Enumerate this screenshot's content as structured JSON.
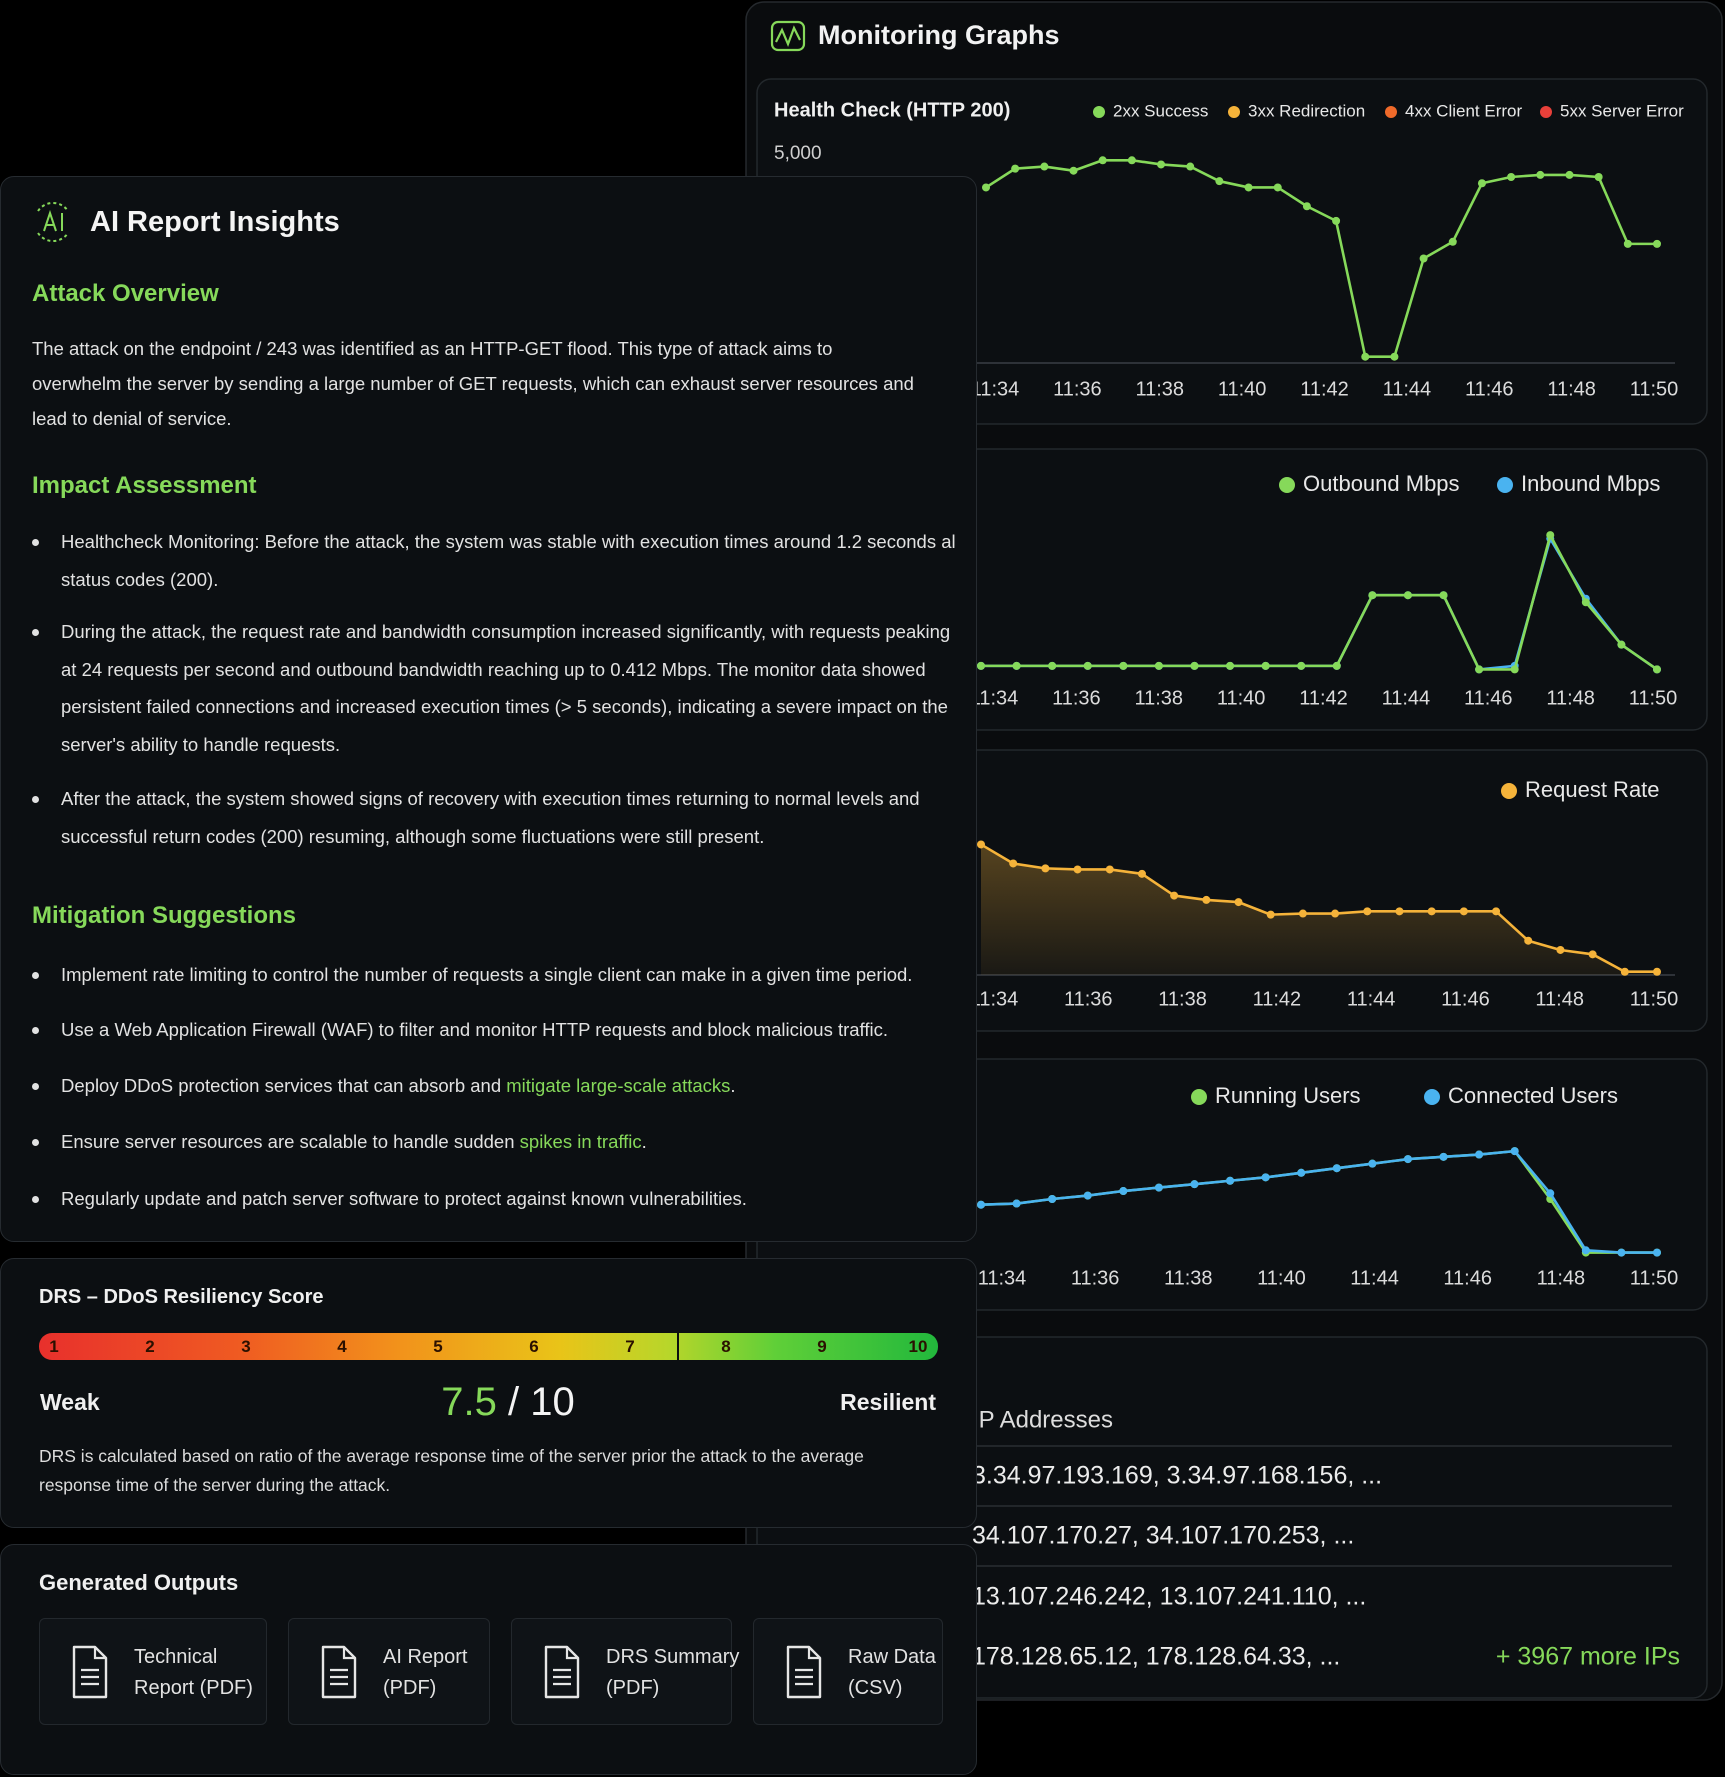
{
  "monitoring": {
    "title": "Monitoring Graphs",
    "charts": [
      {
        "type": "line",
        "title": "Health Check (HTTP 200)",
        "xticks": [
          "11:34",
          "11:36",
          "11:38",
          "11:40",
          "11:42",
          "11:44",
          "11:46",
          "11:48",
          "11:50"
        ],
        "ylim": [
          0,
          5000
        ],
        "yticks": [
          {
            "value": 5000,
            "label": "5,000"
          }
        ],
        "series": [
          {
            "name": "2xx Success",
            "color": "#86d95a",
            "values": [
              4200,
              4650,
              4700,
              4600,
              4850,
              4850,
              4750,
              4700,
              4350,
              4200,
              4200,
              3750,
              3400,
              150,
              150,
              2500,
              2900,
              4300,
              4450,
              4500,
              4500,
              4450,
              2850,
              2850
            ]
          },
          {
            "name": "3xx Redirection",
            "color": "#f5b33a",
            "values": []
          },
          {
            "name": "4xx Client Error",
            "color": "#f06a2a",
            "values": []
          },
          {
            "name": "5xx Server Error",
            "color": "#e8403a",
            "values": []
          }
        ]
      },
      {
        "type": "line",
        "xticks": [
          "11:34",
          "11:36",
          "11:38",
          "11:40",
          "11:42",
          "11:44",
          "11:46",
          "11:48",
          "11:50"
        ],
        "ylim": [
          0,
          0.45
        ],
        "series": [
          {
            "name": "Outbound Mbps",
            "color": "#86d95a",
            "values": [
              0.04,
              0.04,
              0.04,
              0.04,
              0.04,
              0.04,
              0.04,
              0.04,
              0.04,
              0.04,
              0.04,
              0.24,
              0.24,
              0.24,
              0.03,
              0.03,
              0.41,
              0.22,
              0.1,
              0.03
            ]
          },
          {
            "name": "Inbound Mbps",
            "color": "#4ab3f0",
            "values": [
              0.04,
              0.04,
              0.04,
              0.04,
              0.04,
              0.04,
              0.04,
              0.04,
              0.04,
              0.04,
              0.04,
              0.24,
              0.24,
              0.24,
              0.03,
              0.04,
              0.4,
              0.23,
              0.1,
              0.03
            ]
          }
        ]
      },
      {
        "type": "area",
        "xticks": [
          "11:34",
          "11:36",
          "11:38",
          "11:42",
          "11:44",
          "11:46",
          "11:48",
          "11:50"
        ],
        "ylim": [
          0,
          25
        ],
        "series": [
          {
            "name": "Request Rate",
            "color": "#f5b33a",
            "values": [
              24,
              20.5,
              19.6,
              19.4,
              19.4,
              18.6,
              14.6,
              13.8,
              13.4,
              11.1,
              11.3,
              11.3,
              11.7,
              11.7,
              11.7,
              11.7,
              11.7,
              6.3,
              4.6,
              3.8,
              0.6,
              0.6
            ]
          }
        ]
      },
      {
        "type": "line",
        "xticks": [
          "11:34",
          "11:36",
          "11:38",
          "11:40",
          "11:44",
          "11:46",
          "11:48",
          "11:50"
        ],
        "ylim": [
          0,
          100
        ],
        "series": [
          {
            "name": "Running Users",
            "color": "#86d95a",
            "values": [
              45,
              46,
              50,
              53,
              57,
              60,
              63,
              66,
              69,
              73,
              77,
              81,
              85,
              87,
              89,
              92,
              50,
              3,
              3,
              3
            ]
          },
          {
            "name": "Connected Users",
            "color": "#4ab3f0",
            "values": [
              45,
              46,
              50,
              53,
              57,
              60,
              63,
              66,
              69,
              73,
              77,
              81,
              85,
              87,
              89,
              92,
              55,
              5,
              3,
              3
            ]
          }
        ]
      }
    ],
    "ip_table": {
      "header": "IP Addresses",
      "rows": [
        "3.34.97.193.169, 3.34.97.168.156, ...",
        "34.107.170.27, 34.107.170.253, ...",
        "13.107.246.242, 13.107.241.110, ...",
        "178.128.65.12, 178.128.64.33, ..."
      ],
      "more": "+ 3967 more IPs"
    }
  },
  "insights": {
    "title": "AI Report Insights",
    "attack_overview": {
      "heading": "Attack Overview",
      "text": "The attack on the endpoint / 243 was identified as an HTTP-GET flood. This type of attack aims to overwhelm the server by sending a large number of GET requests, which can exhaust server resources and lead to denial of service."
    },
    "impact_assessment": {
      "heading": "Impact Assessment",
      "items": [
        {
          "text": "Healthcheck Monitoring: Before the attack, the system was stable with execution times around 1.2 seconds al status codes (200)."
        },
        {
          "text": "During the attack, the request rate and bandwidth consumption increased significantly, with requests peaking at 24 requests per second and outbound bandwidth reaching up to 0.412 Mbps. The monitor data showed persistent failed connections and increased execution times (> 5 seconds), indicating a severe impact on the server's ability to handle requests."
        },
        {
          "text": "After the attack, the system showed signs of recovery with execution times returning to normal levels and successful return codes (200) resuming, although some fluctuations were still present."
        }
      ]
    },
    "mitigation": {
      "heading": "Mitigation Suggestions",
      "items": [
        {
          "text": "Implement rate limiting to control the number of requests a single client can make in a given time period."
        },
        {
          "text": "Use a Web Application Firewall (WAF) to filter and monitor HTTP requests and block malicious traffic."
        },
        {
          "text": "Deploy DDoS protection services that can absorb and",
          "highlight": "mitigate large-scale attacks",
          "end": "."
        },
        {
          "text": "Ensure server resources are scalable to handle sudden",
          "highlight": "spikes in traffic",
          "end": "."
        },
        {
          "text": "Regularly update and patch server software to protect against known vulnerabilities."
        }
      ]
    }
  },
  "drs": {
    "title": "DRS – DDoS Resiliency Score",
    "scale": [
      1,
      2,
      3,
      4,
      5,
      6,
      7,
      8,
      9,
      10
    ],
    "low_label": "Weak",
    "high_label": "Resilient",
    "score": 7.5,
    "separator": "/",
    "max": 10,
    "description": "DRS is calculated based on ratio of the average response time of the server prior the attack to the average response time of the server during the attack."
  },
  "outputs": {
    "title": "Generated Outputs",
    "items": [
      {
        "lines": [
          "Technical",
          "Report (PDF)"
        ]
      },
      {
        "lines": [
          "AI Report",
          "(PDF)"
        ]
      },
      {
        "lines": [
          "DRS Summary",
          "(PDF)"
        ]
      },
      {
        "lines": [
          "Raw Data",
          "(CSV)"
        ]
      }
    ]
  }
}
